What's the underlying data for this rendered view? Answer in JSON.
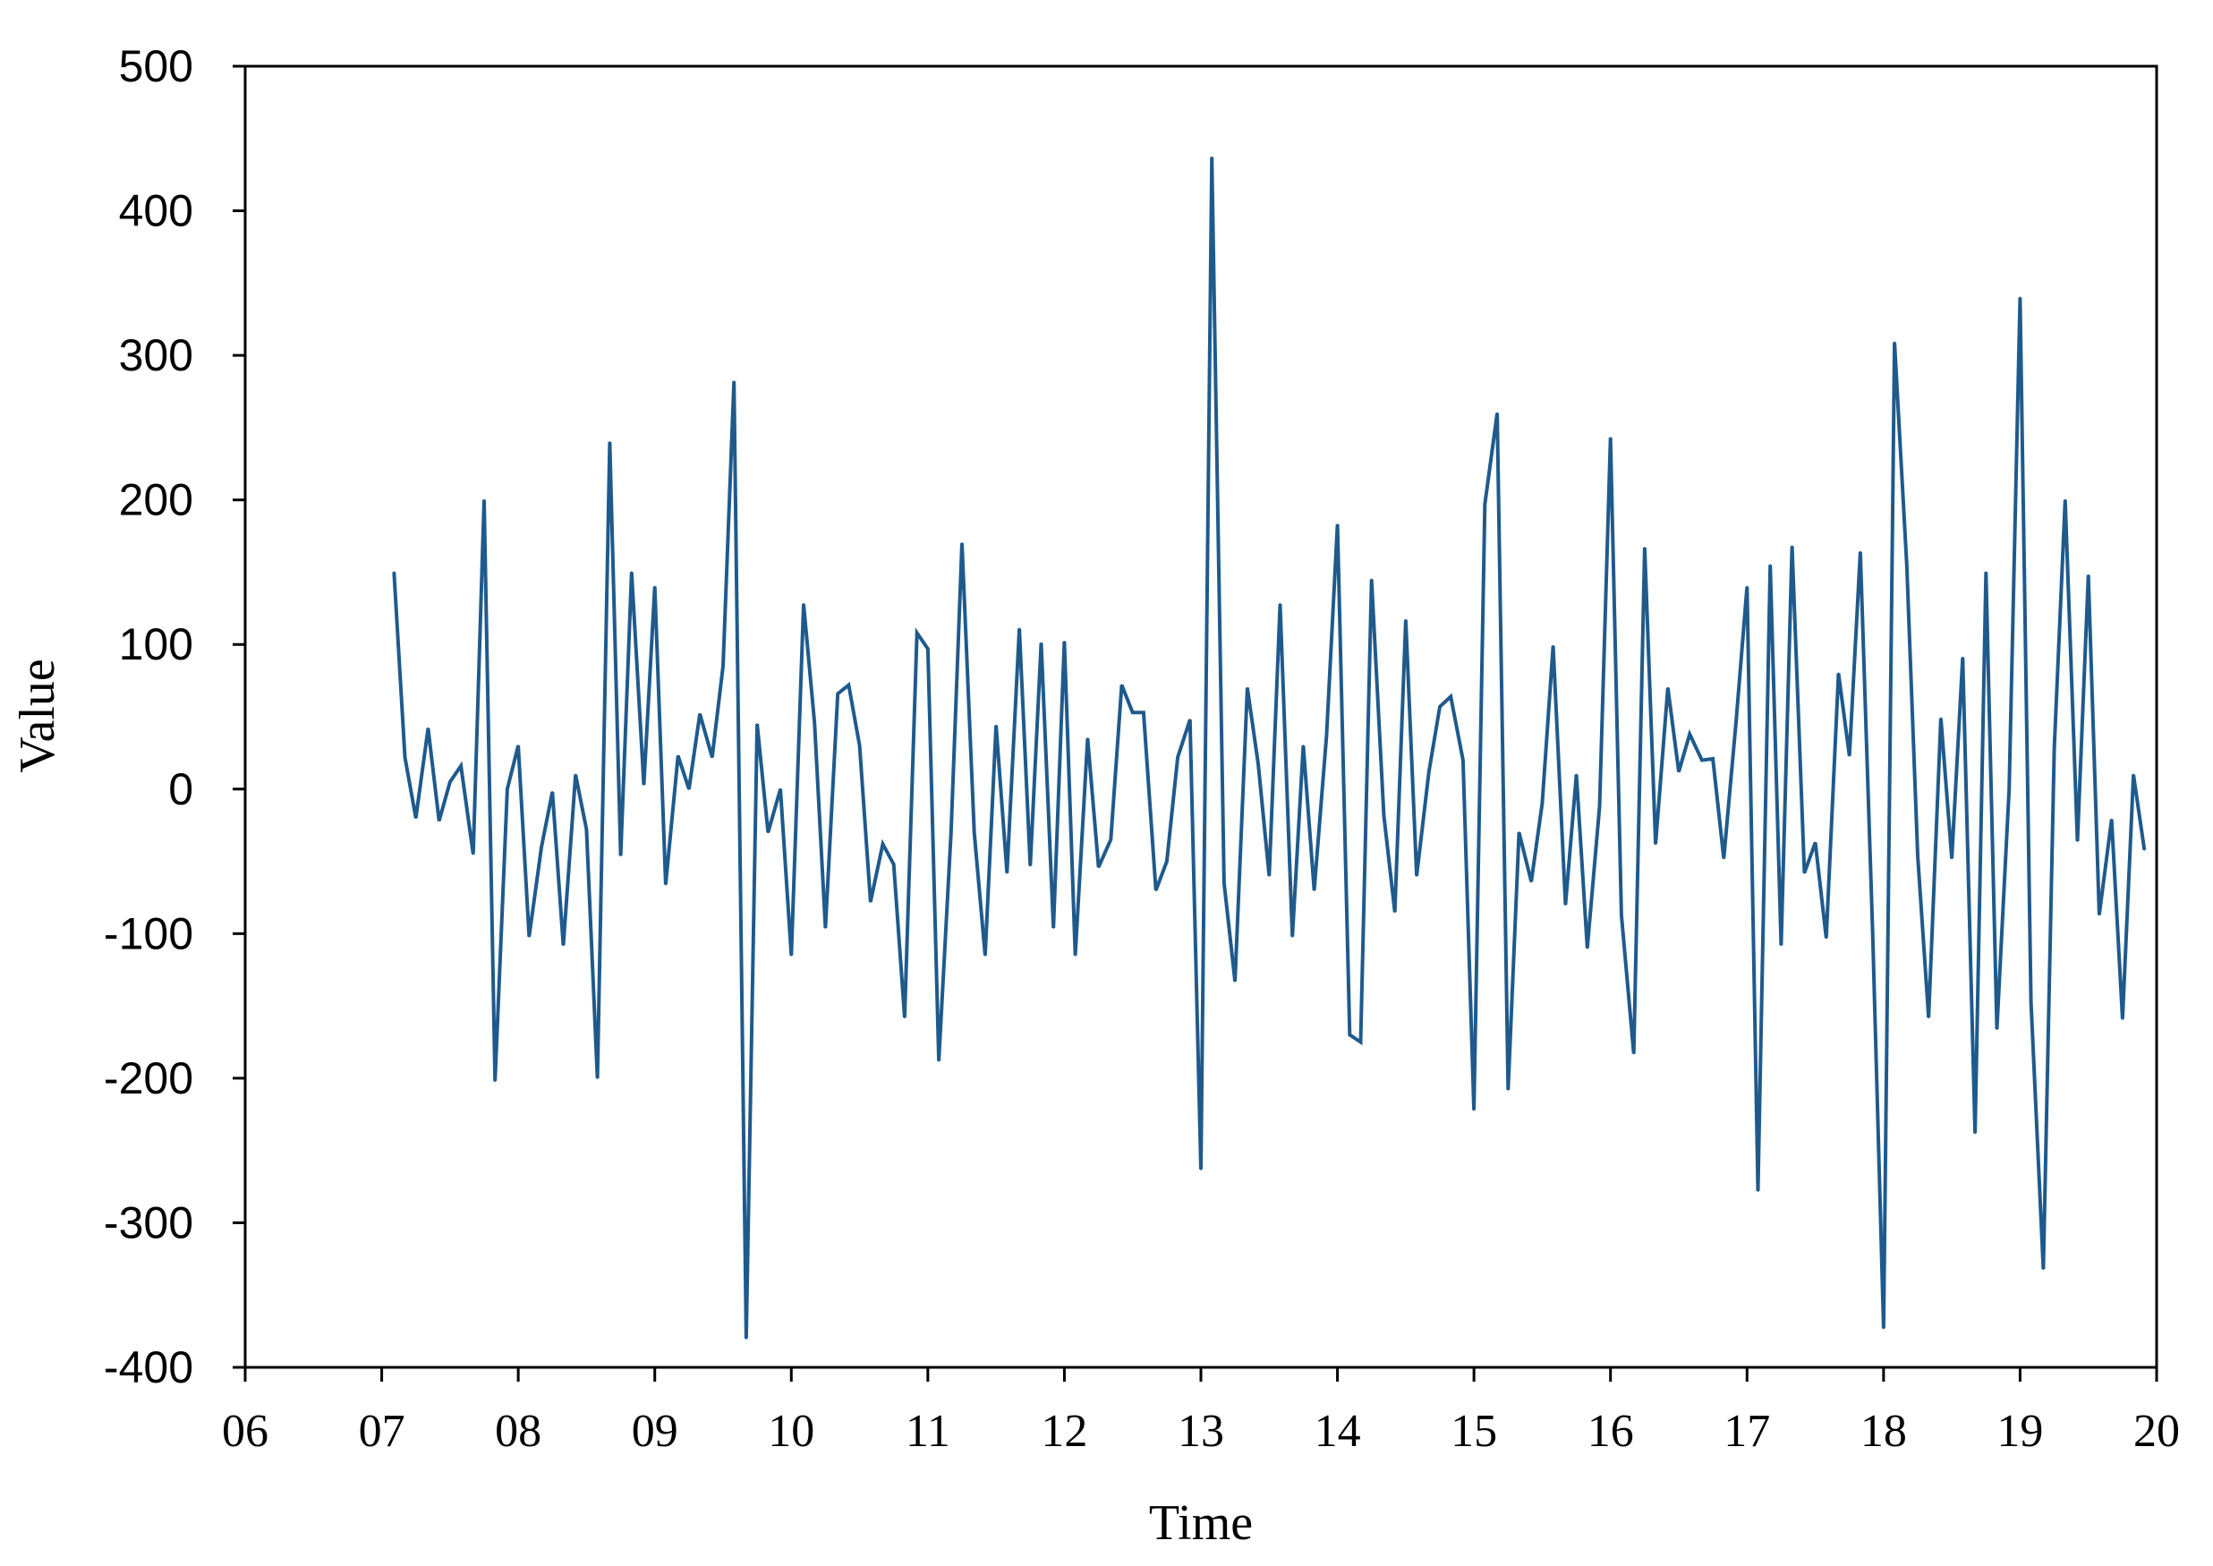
{
  "chart_data": {
    "type": "line",
    "xlabel": "Time",
    "ylabel": "Value",
    "xlim": [
      6,
      20
    ],
    "ylim": [
      -400,
      500
    ],
    "grid": false,
    "x_tick_labels": [
      "06",
      "07",
      "08",
      "09",
      "10",
      "11",
      "12",
      "13",
      "14",
      "15",
      "16",
      "17",
      "18",
      "19",
      "20"
    ],
    "y_tick_labels": [
      "500",
      "400",
      "300",
      "200",
      "100",
      "0",
      "-100",
      "-200",
      "-300",
      "-400"
    ],
    "color": "#1f5a8c",
    "series": [
      {
        "x": [
          7.09,
          7.17,
          7.25,
          7.34,
          7.42,
          7.5,
          7.58,
          7.67,
          7.75,
          7.83,
          7.92,
          8.0,
          8.08,
          8.17,
          8.25,
          8.33,
          8.42,
          8.5,
          8.58,
          8.67,
          8.75,
          8.83,
          8.92,
          9.0,
          9.08,
          9.17,
          9.25,
          9.33,
          9.42,
          9.5,
          9.58,
          9.67,
          9.75,
          9.83,
          9.92,
          10.0,
          10.09,
          10.17,
          10.25,
          10.34,
          10.42,
          10.5,
          10.58,
          10.67,
          10.75,
          10.83,
          10.92,
          11.0,
          11.08,
          11.17,
          11.25,
          11.34,
          11.42,
          11.5,
          11.58,
          11.67,
          11.75,
          11.83,
          11.92,
          12.0,
          12.08,
          12.17,
          12.25,
          12.34,
          12.42,
          12.5,
          12.58,
          12.67,
          12.75,
          12.83,
          12.92,
          13.0,
          13.08,
          13.17,
          13.25,
          13.34,
          13.42,
          13.5,
          13.58,
          13.67,
          13.75,
          13.83,
          13.92,
          14.0,
          14.09,
          14.17,
          14.25,
          14.34,
          14.42,
          14.5,
          14.58,
          14.67,
          14.75,
          14.83,
          14.92,
          15.0,
          15.08,
          15.17,
          15.25,
          15.33,
          15.42,
          15.5,
          15.58,
          15.67,
          15.75,
          15.83,
          15.92,
          16.0,
          16.08,
          16.17,
          16.25,
          16.33,
          16.42,
          16.5,
          16.58,
          16.67,
          16.75,
          16.83,
          16.92,
          17.0,
          17.08,
          17.17,
          17.25,
          17.33,
          17.42,
          17.5,
          17.58,
          17.67,
          17.75,
          17.83,
          17.92,
          18.0,
          18.08,
          18.17,
          18.25,
          18.33,
          18.42,
          18.5,
          18.58,
          18.67,
          18.75,
          18.83,
          18.92,
          19.0,
          19.08,
          19.17,
          19.25,
          19.33,
          19.42,
          19.5,
          19.58,
          19.67,
          19.75,
          19.83,
          19.91
        ],
        "y": [
          150,
          22,
          -20,
          42,
          -22,
          5,
          16,
          -45,
          200,
          -202,
          0,
          30,
          -102,
          -40,
          -2,
          -108,
          10,
          -28,
          -200,
          240,
          -46,
          150,
          3,
          140,
          -66,
          23,
          0,
          52,
          22,
          85,
          282,
          -380,
          45,
          -30,
          0,
          -115,
          128,
          46,
          -96,
          66,
          72,
          30,
          -78,
          -38,
          -52,
          -158,
          108,
          97,
          -188,
          -30,
          170,
          -30,
          -115,
          44,
          -58,
          111,
          -53,
          101,
          -96,
          102,
          -115,
          35,
          -54,
          -35,
          72,
          53,
          53,
          -70,
          -50,
          22,
          48,
          -263,
          437,
          -65,
          -133,
          70,
          17,
          -60,
          128,
          -102,
          30,
          -70,
          37,
          183,
          -170,
          -175,
          145,
          -18,
          -85,
          117,
          -60,
          12,
          57,
          64,
          20,
          -222,
          197,
          260,
          -208,
          -30,
          -64,
          -10,
          99,
          -80,
          10,
          -110,
          -12,
          243,
          -87,
          -183,
          167,
          -38,
          70,
          12,
          38,
          20,
          21,
          -48,
          47,
          140,
          -278,
          155,
          -108,
          168,
          -58,
          -37,
          -103,
          80,
          23,
          164,
          -100,
          -373,
          309,
          155,
          -46,
          -158,
          49,
          -48,
          91,
          -238,
          150,
          -166,
          0,
          340,
          -147,
          -332,
          28,
          200,
          -36,
          148,
          -87,
          -21,
          -159,
          10,
          -42
        ]
      }
    ]
  }
}
